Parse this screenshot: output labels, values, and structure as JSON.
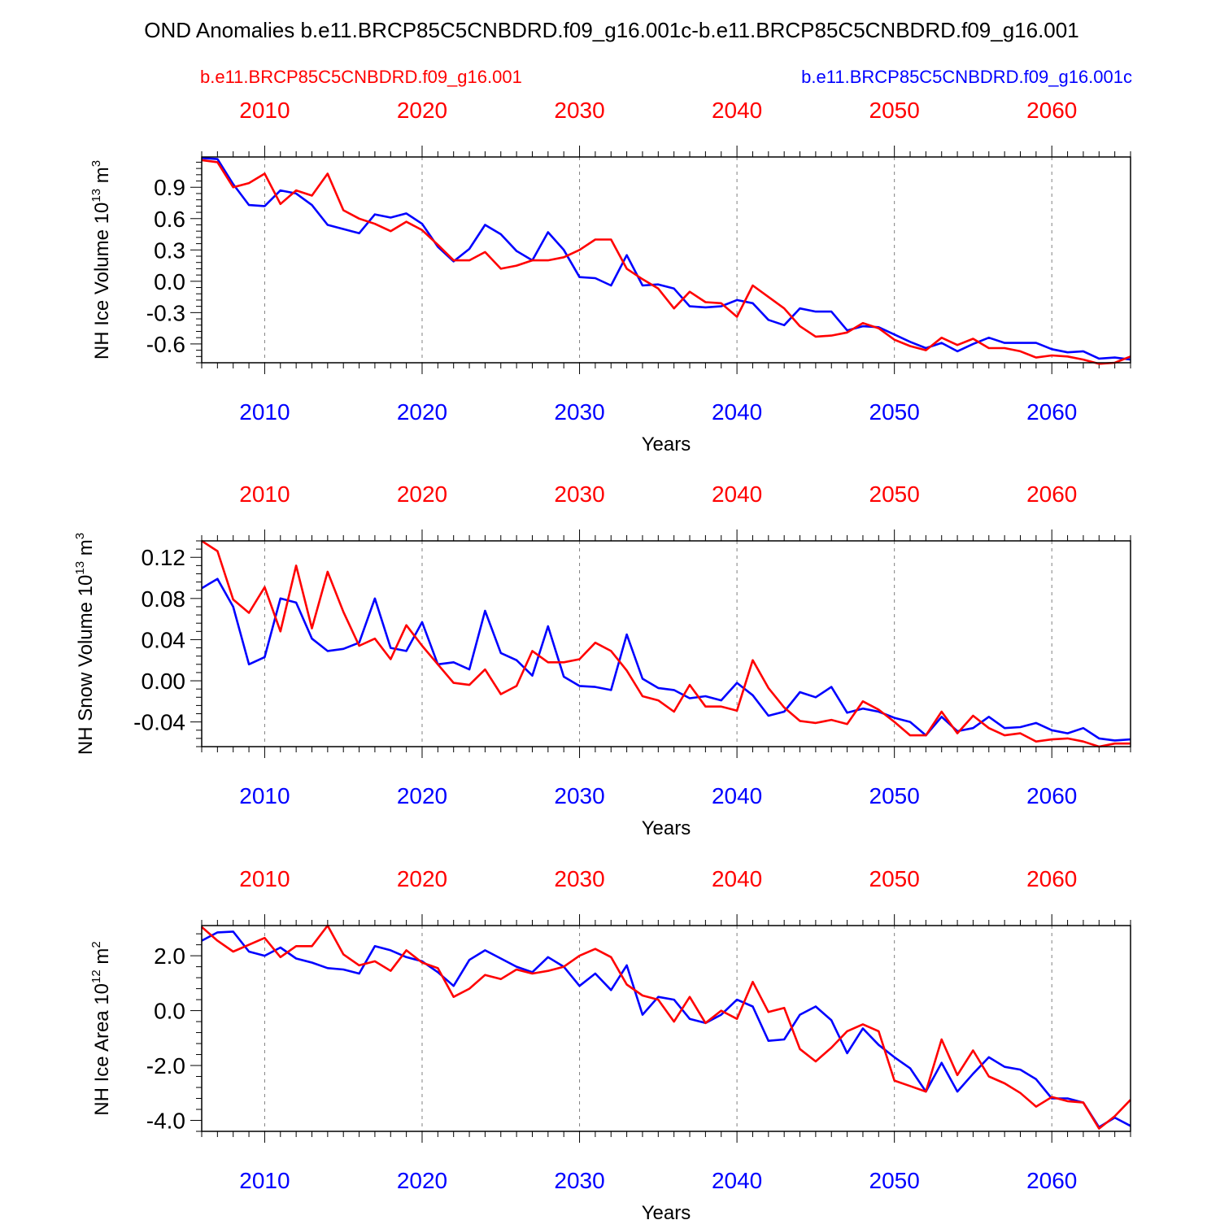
{
  "title": "OND Anomalies b.e11.BRCP85C5CNBDRD.f09_g16.001c-b.e11.BRCP85C5CNBDRD.f09_g16.001",
  "legend": {
    "red_label": "b.e11.BRCP85C5CNBDRD.f09_g16.001",
    "blue_label": "b.e11.BRCP85C5CNBDRD.f09_g16.001c"
  },
  "colors": {
    "red": "#ff0000",
    "blue": "#0000ff",
    "grid": "#808080",
    "axis": "#000000"
  },
  "x_axis": {
    "label": "Years",
    "ticks": [
      2010,
      2020,
      2030,
      2040,
      2050,
      2060
    ],
    "range": [
      2006,
      2065
    ]
  },
  "chart_data": [
    {
      "type": "line",
      "ylabel": "NH Ice Volume 10",
      "yunit_exp": "13",
      "yunit_tail": " m",
      "yunit_sup2": "3",
      "ylim": [
        -0.78,
        1.19
      ],
      "yticks": [
        "0.9",
        "0.6",
        "0.3",
        "0.0",
        "-0.3",
        "-0.6"
      ],
      "ytick_values": [
        0.9,
        0.6,
        0.3,
        0.0,
        -0.3,
        -0.6
      ],
      "x": [
        2006,
        2007,
        2008,
        2009,
        2010,
        2011,
        2012,
        2013,
        2014,
        2015,
        2016,
        2017,
        2018,
        2019,
        2020,
        2021,
        2022,
        2023,
        2024,
        2025,
        2026,
        2027,
        2028,
        2029,
        2030,
        2031,
        2032,
        2033,
        2034,
        2035,
        2036,
        2037,
        2038,
        2039,
        2040,
        2041,
        2042,
        2043,
        2044,
        2045,
        2046,
        2047,
        2048,
        2049,
        2050,
        2051,
        2052,
        2053,
        2054,
        2055,
        2056,
        2057,
        2058,
        2059,
        2060,
        2061,
        2062,
        2063,
        2064,
        2065
      ],
      "series": [
        {
          "name": "b.e11.BRCP85C5CNBDRD.f09_g16.001c",
          "color": "blue",
          "values": [
            1.18,
            1.17,
            0.93,
            0.73,
            0.72,
            0.87,
            0.84,
            0.73,
            0.54,
            0.5,
            0.46,
            0.64,
            0.61,
            0.65,
            0.55,
            0.33,
            0.19,
            0.31,
            0.54,
            0.45,
            0.29,
            0.2,
            0.47,
            0.3,
            0.04,
            0.03,
            -0.04,
            0.25,
            -0.04,
            -0.03,
            -0.07,
            -0.24,
            -0.25,
            -0.24,
            -0.18,
            -0.21,
            -0.37,
            -0.42,
            -0.26,
            -0.29,
            -0.29,
            -0.47,
            -0.43,
            -0.44,
            -0.51,
            -0.58,
            -0.64,
            -0.59,
            -0.67,
            -0.6,
            -0.54,
            -0.59,
            -0.59,
            -0.59,
            -0.65,
            -0.68,
            -0.67,
            -0.74,
            -0.73,
            -0.75
          ]
        },
        {
          "name": "b.e11.BRCP85C5CNBDRD.f09_g16.001",
          "color": "red",
          "values": [
            1.16,
            1.14,
            0.9,
            0.94,
            1.03,
            0.74,
            0.87,
            0.82,
            1.03,
            0.68,
            0.6,
            0.55,
            0.48,
            0.57,
            0.49,
            0.35,
            0.2,
            0.2,
            0.28,
            0.12,
            0.15,
            0.2,
            0.2,
            0.23,
            0.3,
            0.4,
            0.4,
            0.12,
            0.02,
            -0.07,
            -0.26,
            -0.1,
            -0.2,
            -0.21,
            -0.34,
            -0.04,
            -0.15,
            -0.26,
            -0.43,
            -0.53,
            -0.52,
            -0.49,
            -0.4,
            -0.45,
            -0.56,
            -0.62,
            -0.66,
            -0.54,
            -0.61,
            -0.55,
            -0.64,
            -0.64,
            -0.67,
            -0.73,
            -0.71,
            -0.72,
            -0.75,
            -0.79,
            -0.78,
            -0.72
          ]
        }
      ]
    },
    {
      "type": "line",
      "ylabel": "NH Snow Volume 10",
      "yunit_exp": "13",
      "yunit_tail": " m",
      "yunit_sup2": "3",
      "ylim": [
        -0.064,
        0.136
      ],
      "yticks": [
        "0.12",
        "0.08",
        "0.04",
        "0.00",
        "-0.04"
      ],
      "ytick_values": [
        0.12,
        0.08,
        0.04,
        0.0,
        -0.04
      ],
      "x": [
        2006,
        2007,
        2008,
        2009,
        2010,
        2011,
        2012,
        2013,
        2014,
        2015,
        2016,
        2017,
        2018,
        2019,
        2020,
        2021,
        2022,
        2023,
        2024,
        2025,
        2026,
        2027,
        2028,
        2029,
        2030,
        2031,
        2032,
        2033,
        2034,
        2035,
        2036,
        2037,
        2038,
        2039,
        2040,
        2041,
        2042,
        2043,
        2044,
        2045,
        2046,
        2047,
        2048,
        2049,
        2050,
        2051,
        2052,
        2053,
        2054,
        2055,
        2056,
        2057,
        2058,
        2059,
        2060,
        2061,
        2062,
        2063,
        2064,
        2065
      ],
      "series": [
        {
          "name": "b.e11.BRCP85C5CNBDRD.f09_g16.001c",
          "color": "blue",
          "values": [
            0.09,
            0.099,
            0.072,
            0.016,
            0.023,
            0.08,
            0.076,
            0.041,
            0.029,
            0.031,
            0.037,
            0.08,
            0.032,
            0.029,
            0.057,
            0.016,
            0.018,
            0.011,
            0.068,
            0.027,
            0.02,
            0.005,
            0.053,
            0.004,
            -0.005,
            -0.006,
            -0.009,
            0.045,
            0.002,
            -0.007,
            -0.009,
            -0.017,
            -0.015,
            -0.019,
            -0.002,
            -0.014,
            -0.034,
            -0.03,
            -0.011,
            -0.016,
            -0.006,
            -0.031,
            -0.027,
            -0.03,
            -0.036,
            -0.04,
            -0.053,
            -0.035,
            -0.049,
            -0.046,
            -0.035,
            -0.046,
            -0.045,
            -0.041,
            -0.048,
            -0.051,
            -0.046,
            -0.056,
            -0.058,
            -0.057
          ]
        },
        {
          "name": "b.e11.BRCP85C5CNBDRD.f09_g16.001",
          "color": "red",
          "values": [
            0.136,
            0.126,
            0.079,
            0.066,
            0.091,
            0.048,
            0.112,
            0.051,
            0.106,
            0.067,
            0.034,
            0.041,
            0.021,
            0.054,
            0.034,
            0.016,
            -0.002,
            -0.004,
            0.011,
            -0.013,
            -0.005,
            0.029,
            0.018,
            0.018,
            0.021,
            0.037,
            0.029,
            0.01,
            -0.015,
            -0.019,
            -0.03,
            -0.004,
            -0.025,
            -0.025,
            -0.029,
            0.02,
            -0.007,
            -0.026,
            -0.039,
            -0.041,
            -0.038,
            -0.042,
            -0.02,
            -0.028,
            -0.04,
            -0.053,
            -0.053,
            -0.03,
            -0.051,
            -0.034,
            -0.046,
            -0.053,
            -0.051,
            -0.059,
            -0.057,
            -0.056,
            -0.059,
            -0.064,
            -0.061,
            -0.061
          ]
        }
      ]
    },
    {
      "type": "line",
      "ylabel": "NH Ice Area 10",
      "yunit_exp": "12",
      "yunit_tail": " m",
      "yunit_sup2": "2",
      "ylim": [
        -4.4,
        3.1
      ],
      "yticks": [
        "2.0",
        "0.0",
        "-2.0",
        "-4.0"
      ],
      "ytick_values": [
        2.0,
        0.0,
        -2.0,
        -4.0
      ],
      "x": [
        2006,
        2007,
        2008,
        2009,
        2010,
        2011,
        2012,
        2013,
        2014,
        2015,
        2016,
        2017,
        2018,
        2019,
        2020,
        2021,
        2022,
        2023,
        2024,
        2025,
        2026,
        2027,
        2028,
        2029,
        2030,
        2031,
        2032,
        2033,
        2034,
        2035,
        2036,
        2037,
        2038,
        2039,
        2040,
        2041,
        2042,
        2043,
        2044,
        2045,
        2046,
        2047,
        2048,
        2049,
        2050,
        2051,
        2052,
        2053,
        2054,
        2055,
        2056,
        2057,
        2058,
        2059,
        2060,
        2061,
        2062,
        2063,
        2064,
        2065
      ],
      "series": [
        {
          "name": "b.e11.BRCP85C5CNBDRD.f09_g16.001c",
          "color": "blue",
          "values": [
            2.55,
            2.85,
            2.88,
            2.15,
            2.0,
            2.3,
            1.9,
            1.75,
            1.55,
            1.5,
            1.35,
            2.35,
            2.2,
            1.95,
            1.8,
            1.4,
            0.9,
            1.85,
            2.2,
            1.9,
            1.6,
            1.4,
            1.95,
            1.6,
            0.9,
            1.35,
            0.75,
            1.65,
            -0.15,
            0.5,
            0.4,
            -0.3,
            -0.45,
            -0.15,
            0.4,
            0.15,
            -1.1,
            -1.05,
            -0.15,
            0.15,
            -0.35,
            -1.55,
            -0.65,
            -1.25,
            -1.7,
            -2.1,
            -2.95,
            -1.9,
            -2.95,
            -2.3,
            -1.7,
            -2.05,
            -2.15,
            -2.5,
            -3.2,
            -3.2,
            -3.35,
            -4.25,
            -3.9,
            -4.2
          ]
        },
        {
          "name": "b.e11.BRCP85C5CNBDRD.f09_g16.001",
          "color": "red",
          "values": [
            3.05,
            2.55,
            2.15,
            2.4,
            2.65,
            1.95,
            2.35,
            2.35,
            3.1,
            2.05,
            1.65,
            1.8,
            1.45,
            2.2,
            1.75,
            1.55,
            0.5,
            0.8,
            1.3,
            1.15,
            1.5,
            1.35,
            1.45,
            1.6,
            2.0,
            2.25,
            1.95,
            0.95,
            0.55,
            0.4,
            -0.4,
            0.5,
            -0.45,
            0.0,
            -0.3,
            1.05,
            -0.05,
            0.1,
            -1.4,
            -1.85,
            -1.35,
            -0.75,
            -0.5,
            -0.75,
            -2.55,
            -2.75,
            -2.95,
            -1.05,
            -2.35,
            -1.45,
            -2.4,
            -2.65,
            -3.0,
            -3.5,
            -3.15,
            -3.3,
            -3.35,
            -4.3,
            -3.85,
            -3.25
          ]
        }
      ]
    }
  ]
}
